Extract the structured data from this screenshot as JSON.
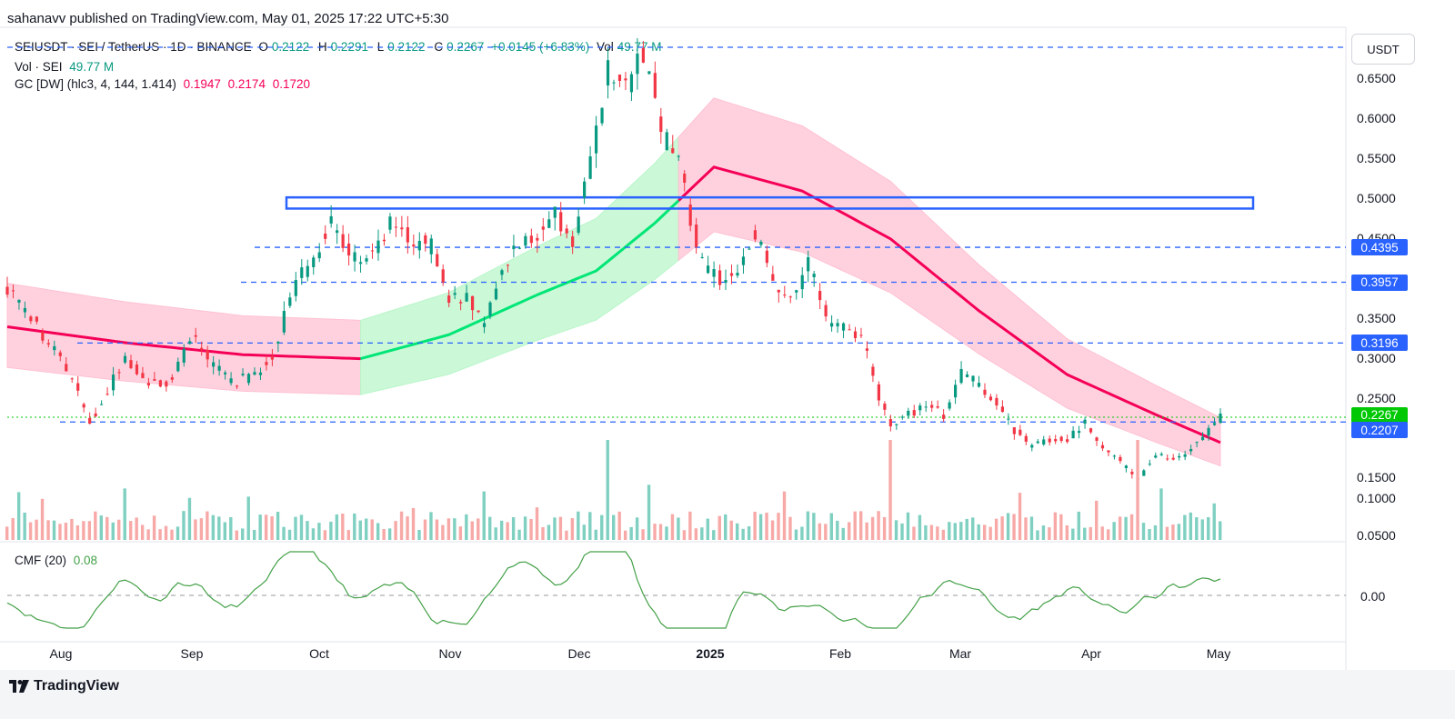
{
  "header": {
    "publish_line": "sahanavv published on TradingView.com, May 01, 2025 17:22 UTC+5:30"
  },
  "legend": {
    "symbol": "SEIUSDT · SEI / TetherUS · 1D · BINANCE",
    "o_label": "O",
    "o_value": "0.2122",
    "h_label": "H",
    "h_value": "0.2291",
    "l_label": "L",
    "l_value": "0.2122",
    "c_label": "C",
    "c_value": "0.2267",
    "change": "+0.0145 (+6.83%)",
    "vol_label": "Vol",
    "vol_value": "49.77 M",
    "vol_row_label": "Vol · SEI",
    "vol_row_value": "49.77 M",
    "gc_label": "GC [DW] (hlc3, 4, 144, 1.414)",
    "gc_mid": "0.1947",
    "gc_upper": "0.2174",
    "gc_lower": "0.1720",
    "cmf_label": "CMF (20)",
    "cmf_value": "0.08"
  },
  "currency_button": "USDT",
  "price_axis": {
    "ticks": [
      "0.6500",
      "0.6000",
      "0.5500",
      "0.5000",
      "0.4500",
      "0.3500",
      "0.3000",
      "0.2500",
      "0.1500",
      "0.1000",
      "0.0500"
    ],
    "badges": [
      {
        "value": "0.4395",
        "color": "#2962ff"
      },
      {
        "value": "0.3957",
        "color": "#2962ff"
      },
      {
        "value": "0.3196",
        "color": "#2962ff"
      },
      {
        "value": "0.2267",
        "color": "#00c805"
      },
      {
        "value": "0.2207",
        "color": "#2962ff"
      }
    ]
  },
  "cmf_axis": {
    "zero_tick": "0.00"
  },
  "time_axis": {
    "labels": [
      "Aug",
      "Sep",
      "Oct",
      "Nov",
      "Dec",
      "2025",
      "Feb",
      "Mar",
      "Apr",
      "May"
    ]
  },
  "footer": {
    "brand": "TradingView"
  },
  "colors": {
    "up": "#089981",
    "down": "#f23645",
    "level_line": "#2962ff",
    "gc_bear_fill": "#ffc1d3",
    "gc_bull_fill": "#b9f6ca",
    "gc_bear_line": "#f50057",
    "gc_bull_line": "#00e676",
    "cmf_line": "#43a047"
  },
  "chart_data": {
    "type": "candlestick",
    "symbol": "SEIUSDT",
    "timeframe": "1D",
    "x_range": [
      "2024-07-15",
      "2025-05-01"
    ],
    "ylim": [
      0.05,
      0.69
    ],
    "key_levels": [
      0.69,
      0.4395,
      0.3957,
      0.3196,
      0.2207
    ],
    "resistance_zone": [
      0.488,
      0.502
    ],
    "last_price": 0.2267,
    "price_path": [
      [
        0,
        0.39
      ],
      [
        10,
        0.34
      ],
      [
        20,
        0.29
      ],
      [
        28,
        0.22
      ],
      [
        34,
        0.26
      ],
      [
        40,
        0.3
      ],
      [
        48,
        0.27
      ],
      [
        56,
        0.27
      ],
      [
        62,
        0.33
      ],
      [
        68,
        0.3
      ],
      [
        76,
        0.27
      ],
      [
        84,
        0.28
      ],
      [
        90,
        0.3
      ],
      [
        96,
        0.38
      ],
      [
        104,
        0.43
      ],
      [
        110,
        0.47
      ],
      [
        116,
        0.43
      ],
      [
        122,
        0.42
      ],
      [
        130,
        0.47
      ],
      [
        136,
        0.45
      ],
      [
        144,
        0.44
      ],
      [
        150,
        0.37
      ],
      [
        156,
        0.38
      ],
      [
        162,
        0.34
      ],
      [
        168,
        0.41
      ],
      [
        174,
        0.45
      ],
      [
        180,
        0.45
      ],
      [
        186,
        0.48
      ],
      [
        192,
        0.45
      ],
      [
        198,
        0.55
      ],
      [
        204,
        0.66
      ],
      [
        210,
        0.64
      ],
      [
        214,
        0.68
      ],
      [
        218,
        0.67
      ],
      [
        222,
        0.58
      ],
      [
        228,
        0.55
      ],
      [
        232,
        0.47
      ],
      [
        236,
        0.42
      ],
      [
        242,
        0.4
      ],
      [
        248,
        0.4
      ],
      [
        254,
        0.46
      ],
      [
        260,
        0.39
      ],
      [
        266,
        0.37
      ],
      [
        272,
        0.42
      ],
      [
        278,
        0.35
      ],
      [
        284,
        0.34
      ],
      [
        290,
        0.33
      ],
      [
        296,
        0.25
      ],
      [
        300,
        0.22
      ],
      [
        306,
        0.23
      ],
      [
        312,
        0.24
      ],
      [
        318,
        0.23
      ],
      [
        324,
        0.28
      ],
      [
        330,
        0.27
      ],
      [
        336,
        0.24
      ],
      [
        342,
        0.21
      ],
      [
        348,
        0.19
      ],
      [
        354,
        0.2
      ],
      [
        360,
        0.2
      ],
      [
        366,
        0.22
      ],
      [
        372,
        0.19
      ],
      [
        378,
        0.17
      ],
      [
        384,
        0.15
      ],
      [
        390,
        0.18
      ],
      [
        396,
        0.17
      ],
      [
        402,
        0.19
      ],
      [
        408,
        0.21
      ],
      [
        412,
        0.227
      ]
    ],
    "gc_mid_path": [
      [
        0,
        0.34
      ],
      [
        40,
        0.32
      ],
      [
        80,
        0.305
      ],
      [
        120,
        0.3
      ],
      [
        150,
        0.33
      ],
      [
        180,
        0.38
      ],
      [
        200,
        0.41
      ],
      [
        220,
        0.47
      ],
      [
        240,
        0.54
      ],
      [
        270,
        0.51
      ],
      [
        300,
        0.45
      ],
      [
        330,
        0.36
      ],
      [
        360,
        0.28
      ],
      [
        390,
        0.23
      ],
      [
        412,
        0.195
      ]
    ],
    "cmf": {
      "value": 0.08,
      "zero_line": 0.0
    }
  }
}
